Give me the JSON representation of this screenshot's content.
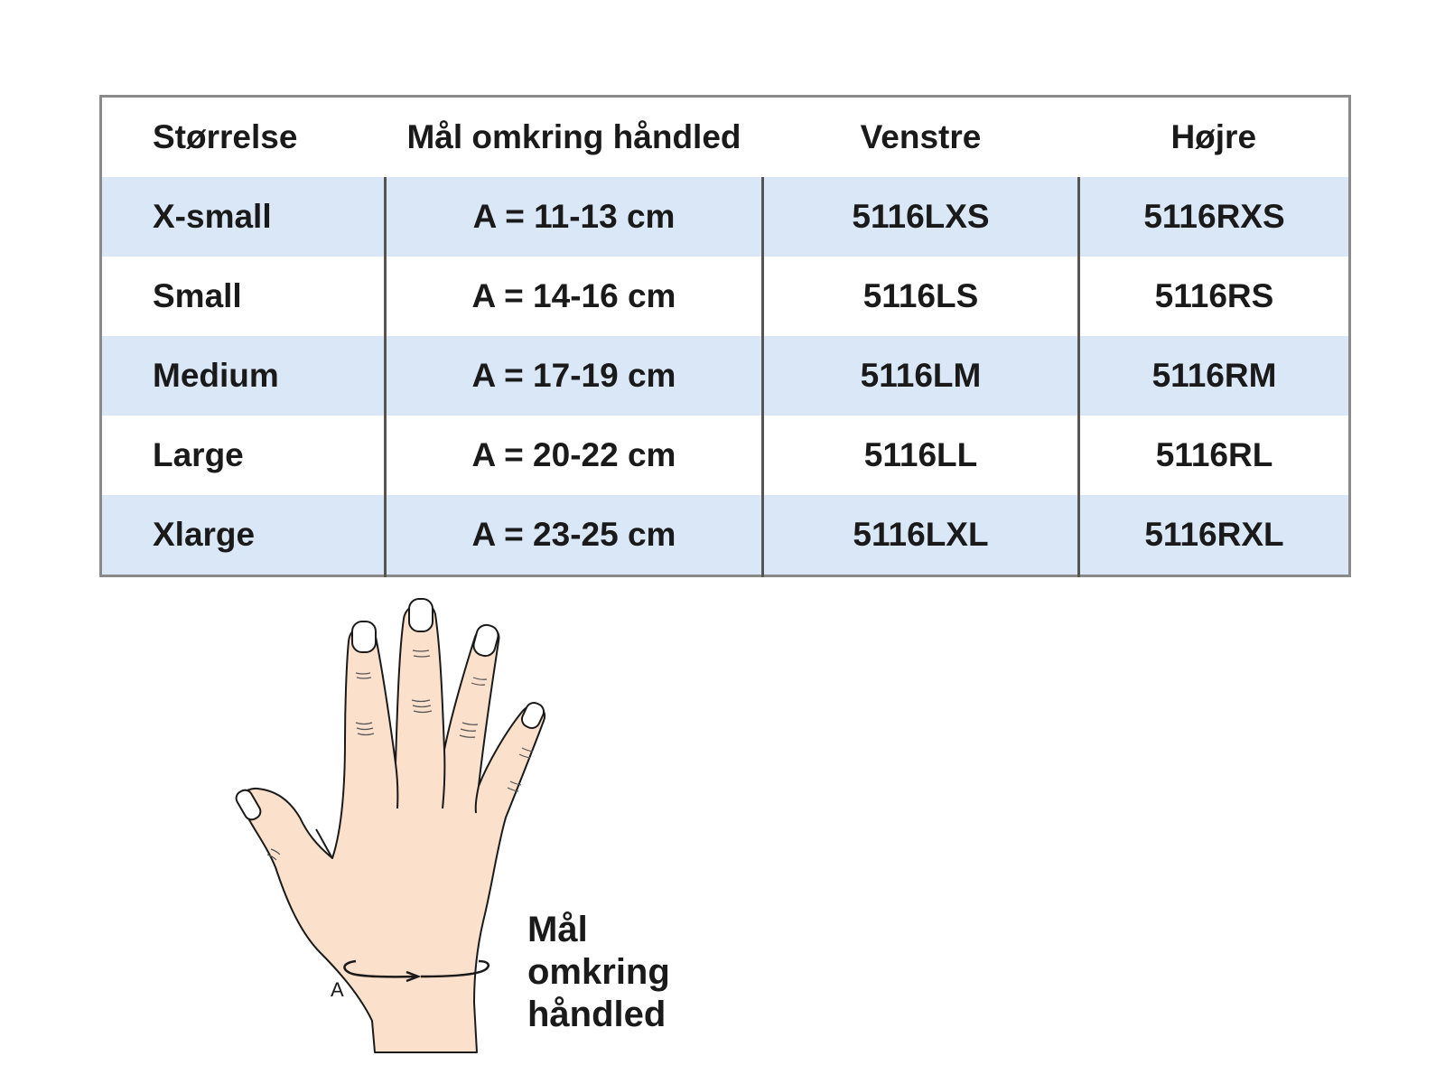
{
  "table": {
    "headers": [
      "Størrelse",
      "Mål omkring håndled",
      "Venstre",
      "Højre"
    ],
    "rows": [
      [
        "X-small",
        "A = 11-13 cm",
        "5116LXS",
        "5116RXS"
      ],
      [
        "Small",
        "A = 14-16 cm",
        "5116LS",
        "5116RS"
      ],
      [
        "Medium",
        "A = 17-19 cm",
        "5116LM",
        "5116RM"
      ],
      [
        "Large",
        "A = 20-22 cm",
        "5116LL",
        "5116RL"
      ],
      [
        "Xlarge",
        "A = 23-25 cm",
        "5116LXL",
        "5116RXL"
      ]
    ],
    "row_shading": [
      "shaded",
      "plain",
      "shaded",
      "plain",
      "shaded"
    ]
  },
  "illustration": {
    "wrist_marker": "A",
    "caption_lines": [
      "Mål",
      "omkring",
      "håndled"
    ]
  },
  "colors": {
    "shaded_row": "#d9e7f7",
    "skin": "#fbe0cc",
    "border": "#8a8a8a"
  }
}
